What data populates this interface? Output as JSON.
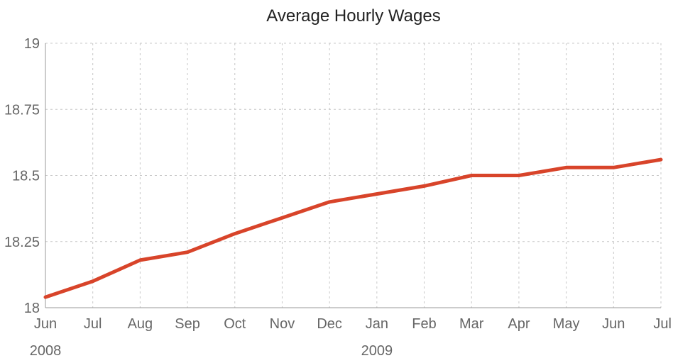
{
  "chart_data": {
    "type": "line",
    "title": "Average Hourly Wages",
    "xlabel": "",
    "ylabel": "",
    "x": [
      "Jun",
      "Jul",
      "Aug",
      "Sep",
      "Oct",
      "Nov",
      "Dec",
      "Jan",
      "Feb",
      "Mar",
      "Apr",
      "May",
      "Jun",
      "Jul"
    ],
    "year_labels": [
      {
        "label": "2008",
        "index": 0
      },
      {
        "label": "2009",
        "index": 7
      }
    ],
    "series": [
      {
        "values": [
          18.04,
          18.1,
          18.18,
          18.21,
          18.28,
          18.34,
          18.4,
          18.43,
          18.46,
          18.5,
          18.5,
          18.53,
          18.53,
          18.56
        ],
        "color": "#d8442a"
      }
    ],
    "ylim": [
      18,
      19
    ],
    "yticks": [
      {
        "value": 18,
        "label": "18"
      },
      {
        "value": 18.25,
        "label": "18.25"
      },
      {
        "value": 18.5,
        "label": "18.5"
      },
      {
        "value": 18.75,
        "label": "18.75"
      },
      {
        "value": 19,
        "label": "19"
      }
    ],
    "grid": true,
    "legend": "none"
  }
}
